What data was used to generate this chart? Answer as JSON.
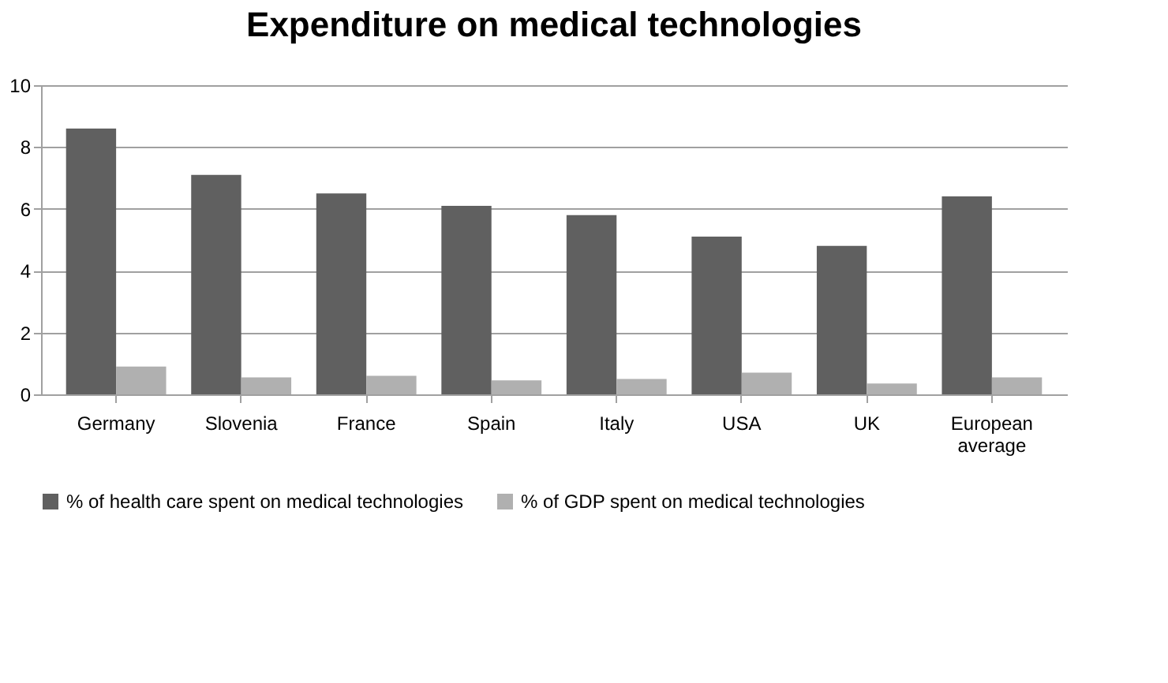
{
  "chart_data": {
    "type": "bar",
    "title": "Expenditure on medical technologies",
    "categories": [
      "Germany",
      "Slovenia",
      "France",
      "Spain",
      "Italy",
      "USA",
      "UK",
      "European average"
    ],
    "series": [
      {
        "name": "% of health care spent on medical technologies",
        "color": "#606060",
        "values": [
          8.6,
          7.1,
          6.5,
          6.1,
          5.8,
          5.1,
          4.8,
          6.4
        ]
      },
      {
        "name": "% of GDP spent on medical technologies",
        "color": "#b0b0b0",
        "values": [
          0.9,
          0.55,
          0.6,
          0.45,
          0.5,
          0.7,
          0.35,
          0.55
        ]
      }
    ],
    "ylim": [
      0,
      10
    ],
    "yticks": [
      0,
      2,
      4,
      6,
      8,
      10
    ],
    "grid": "y",
    "legend": "bottom"
  }
}
